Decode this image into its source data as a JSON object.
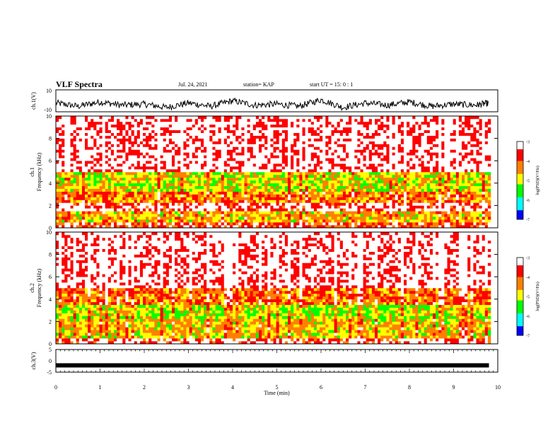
{
  "header": {
    "title": "VLF Spectra",
    "date": "Jul. 24, 2021",
    "station": "station= KAP",
    "start_ut": "start  UT =   15: 0  : 1"
  },
  "chart_data": [
    {
      "type": "line",
      "title": "",
      "ylabel": "ch.1(V)",
      "ylim": [
        -10,
        10
      ],
      "yticks": [
        "10",
        "-10"
      ],
      "xlim": [
        0,
        10
      ],
      "description_series": "dense waveform oscillating mostly between about -6 and 4 V",
      "series": [
        {
          "x": [
            0,
            0.5,
            1,
            1.5,
            2,
            2.5,
            3,
            3.5,
            4,
            4.5,
            5,
            5.5,
            6,
            6.5,
            7,
            7.5,
            8,
            8.5,
            9,
            9.5,
            9.8
          ],
          "y": [
            -2,
            -5,
            -1,
            -4,
            -3,
            -6,
            -2,
            -5,
            0,
            -4,
            -3,
            -5,
            1,
            -6,
            -2,
            -4,
            -1,
            -5,
            -3,
            -4,
            -2
          ]
        }
      ]
    },
    {
      "type": "heatmap",
      "title": "",
      "ylabel": "ch.1\nFrequency (kHz)",
      "ylabel_lines": [
        "ch.1",
        "Frequency (kHz)"
      ],
      "ylim": [
        0,
        10
      ],
      "yticks": [
        "0",
        "2",
        "4",
        "6",
        "8",
        "10"
      ],
      "xlim": [
        0,
        10
      ],
      "colorbar": {
        "label": "log(PSD)(V²/Hz)",
        "range": [
          -7,
          -3
        ],
        "ticks": [
          "-3",
          "-4",
          "-5",
          "-6",
          "-7"
        ]
      },
      "bands_log_psd": [
        {
          "freq_range": [
            0,
            0.5
          ],
          "value": -3.8
        },
        {
          "freq_range": [
            0.5,
            1.5
          ],
          "value": -4.6
        },
        {
          "freq_range": [
            1.5,
            2.2
          ],
          "value": -3.4
        },
        {
          "freq_range": [
            2.2,
            3.2
          ],
          "value": -4.3
        },
        {
          "freq_range": [
            3.2,
            5
          ],
          "value": -4.9
        },
        {
          "freq_range": [
            5,
            10
          ],
          "value": -3.3
        }
      ]
    },
    {
      "type": "heatmap",
      "title": "",
      "ylabel": "ch.2\nFrequency (kHz)",
      "ylabel_lines": [
        "ch.2",
        "Frequency (kHz)"
      ],
      "ylim": [
        0,
        10
      ],
      "yticks": [
        "0",
        "2",
        "4",
        "6",
        "8",
        "10"
      ],
      "xlim": [
        0,
        10
      ],
      "colorbar": {
        "label": "log(PSD)(V²/Hz)",
        "range": [
          -7,
          -3
        ],
        "ticks": [
          "-3",
          "-4",
          "-5",
          "-6",
          "-7"
        ]
      },
      "bands_log_psd": [
        {
          "freq_range": [
            0,
            0.5
          ],
          "value": -3.6
        },
        {
          "freq_range": [
            0.5,
            2.2
          ],
          "value": -4.7
        },
        {
          "freq_range": [
            2.2,
            3.5
          ],
          "value": -5.1
        },
        {
          "freq_range": [
            3.5,
            5
          ],
          "value": -4.2
        },
        {
          "freq_range": [
            5,
            10
          ],
          "value": -3.3
        }
      ]
    },
    {
      "type": "line",
      "title": "",
      "ylabel": "ch.3(V)",
      "ylim": [
        -5,
        5
      ],
      "yticks": [
        "5",
        "0",
        "-5"
      ],
      "xlim": [
        0,
        10
      ],
      "xlabel": "Time (min)",
      "xticks": [
        "0",
        "1",
        "2",
        "3",
        "4",
        "5",
        "6",
        "7",
        "8",
        "9",
        "10"
      ],
      "series": [
        {
          "x": [
            0,
            9.8
          ],
          "y": [
            -2,
            -2
          ]
        }
      ]
    }
  ],
  "colors": {
    "cmap": [
      "#000080",
      "#0000ff",
      "#00ffff",
      "#00ff00",
      "#ffff00",
      "#ff8000",
      "#ff0000",
      "#ffffff"
    ],
    "line": "#000000"
  }
}
